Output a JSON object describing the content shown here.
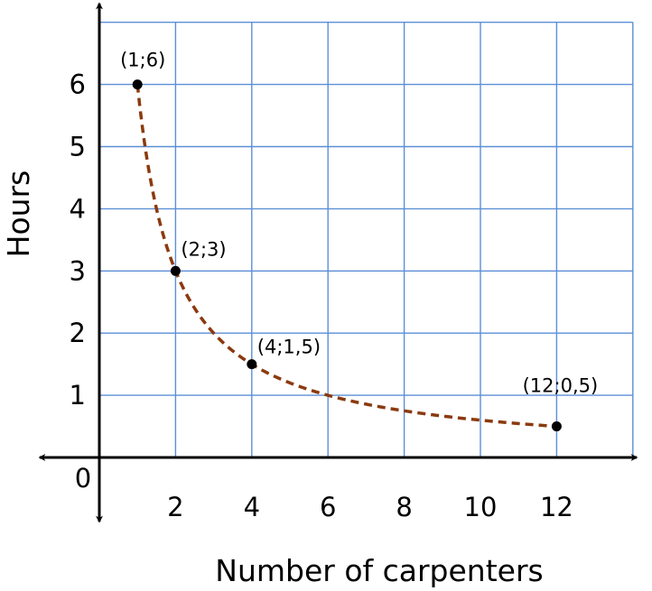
{
  "chart_data": {
    "type": "line",
    "title": "",
    "xlabel": "Number of carpenters",
    "ylabel": "Hours",
    "origin_label": "0",
    "xlim": [
      0,
      14
    ],
    "ylim": [
      0,
      7
    ],
    "grid": true,
    "x_ticks": [
      2,
      4,
      6,
      8,
      10,
      12
    ],
    "x_tick_labels": [
      "2",
      "4",
      "6",
      "8",
      "10",
      "12"
    ],
    "y_ticks": [
      1,
      2,
      3,
      4,
      5,
      6
    ],
    "y_tick_labels": [
      "1",
      "2",
      "3",
      "4",
      "5",
      "6"
    ],
    "curve": {
      "equation": "y = 6/x",
      "x_from": 1,
      "x_to": 12,
      "style": "dashed",
      "color": "#8b3a0f"
    },
    "points": [
      {
        "x": 1,
        "y": 6,
        "label": "(1;6)"
      },
      {
        "x": 2,
        "y": 3,
        "label": "(2;3)"
      },
      {
        "x": 4,
        "y": 1.5,
        "label": "(4;1,5)"
      },
      {
        "x": 12,
        "y": 0.5,
        "label": "(12;0,5)"
      }
    ]
  }
}
